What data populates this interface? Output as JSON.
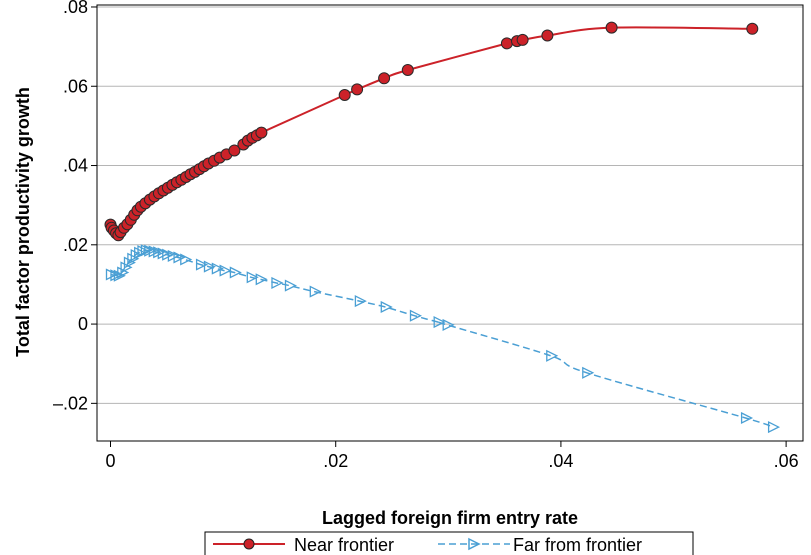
{
  "chart_data": {
    "type": "line",
    "xlabel": "Lagged foreign firm entry rate",
    "ylabel": "Total factor productivity growth",
    "xlim": [
      -0.0012,
      0.0615
    ],
    "ylim": [
      -0.0295,
      0.0805
    ],
    "x_ticks": [
      0,
      0.02,
      0.04,
      0.06
    ],
    "x_tick_labels": [
      "0",
      ".02",
      ".04",
      ".06"
    ],
    "y_ticks": [
      -0.02,
      0,
      0.02,
      0.04,
      0.06,
      0.08
    ],
    "y_tick_labels": [
      "–.02",
      "0",
      ".02",
      ".04",
      ".06",
      ".08"
    ],
    "grid": "horizontal",
    "legend_position": "bottom",
    "series": [
      {
        "name": "Near frontier",
        "color": "#cc2229",
        "marker": "circle",
        "line_style": "solid",
        "x": [
          0.0,
          0.0001,
          0.0003,
          0.0005,
          0.0007,
          0.0009,
          0.0012,
          0.0015,
          0.0018,
          0.0021,
          0.0024,
          0.0027,
          0.0031,
          0.0035,
          0.0039,
          0.0043,
          0.0047,
          0.0051,
          0.0055,
          0.0059,
          0.0063,
          0.0067,
          0.0071,
          0.0075,
          0.0079,
          0.0083,
          0.0087,
          0.0092,
          0.0097,
          0.0103,
          0.011,
          0.0118,
          0.0122,
          0.0126,
          0.013,
          0.0134,
          0.0208,
          0.0219,
          0.0243,
          0.0264,
          0.0352,
          0.0361,
          0.0366,
          0.0388,
          0.0445,
          0.057
        ],
        "y": [
          0.0251,
          0.0243,
          0.0236,
          0.0229,
          0.0224,
          0.0232,
          0.0243,
          0.0252,
          0.0263,
          0.0276,
          0.0287,
          0.0296,
          0.0305,
          0.0314,
          0.0322,
          0.033,
          0.0337,
          0.0344,
          0.0351,
          0.0358,
          0.0364,
          0.0371,
          0.0378,
          0.0384,
          0.0391,
          0.0398,
          0.0405,
          0.0412,
          0.042,
          0.0428,
          0.0438,
          0.0453,
          0.0463,
          0.047,
          0.0476,
          0.0483,
          0.0578,
          0.0592,
          0.062,
          0.0641,
          0.0708,
          0.0714,
          0.0717,
          0.0728,
          0.0748,
          0.0745
        ]
      },
      {
        "name": "Far from frontier",
        "color": "#4a9fd4",
        "marker": "triangle-right",
        "line_style": "dashed",
        "x": [
          0.0,
          0.0004,
          0.0007,
          0.001,
          0.0013,
          0.0016,
          0.0019,
          0.0022,
          0.0025,
          0.0028,
          0.0031,
          0.0034,
          0.0038,
          0.0042,
          0.0046,
          0.005,
          0.0055,
          0.006,
          0.0066,
          0.008,
          0.0087,
          0.0094,
          0.0101,
          0.011,
          0.0125,
          0.0133,
          0.0147,
          0.0159,
          0.0181,
          0.0221,
          0.0244,
          0.027,
          0.0291,
          0.0299,
          0.0391,
          0.0423,
          0.0564,
          0.0588
        ],
        "y": [
          0.0125,
          0.0123,
          0.0122,
          0.013,
          0.0143,
          0.0155,
          0.0165,
          0.0174,
          0.018,
          0.0184,
          0.0186,
          0.0185,
          0.0183,
          0.0181,
          0.0178,
          0.0175,
          0.0172,
          0.0168,
          0.0163,
          0.015,
          0.0145,
          0.014,
          0.0135,
          0.013,
          0.0118,
          0.0113,
          0.0104,
          0.0097,
          0.0082,
          0.0058,
          0.0043,
          0.0021,
          0.0005,
          -0.0002,
          -0.008,
          -0.0123,
          -0.0237,
          -0.026
        ]
      }
    ]
  }
}
